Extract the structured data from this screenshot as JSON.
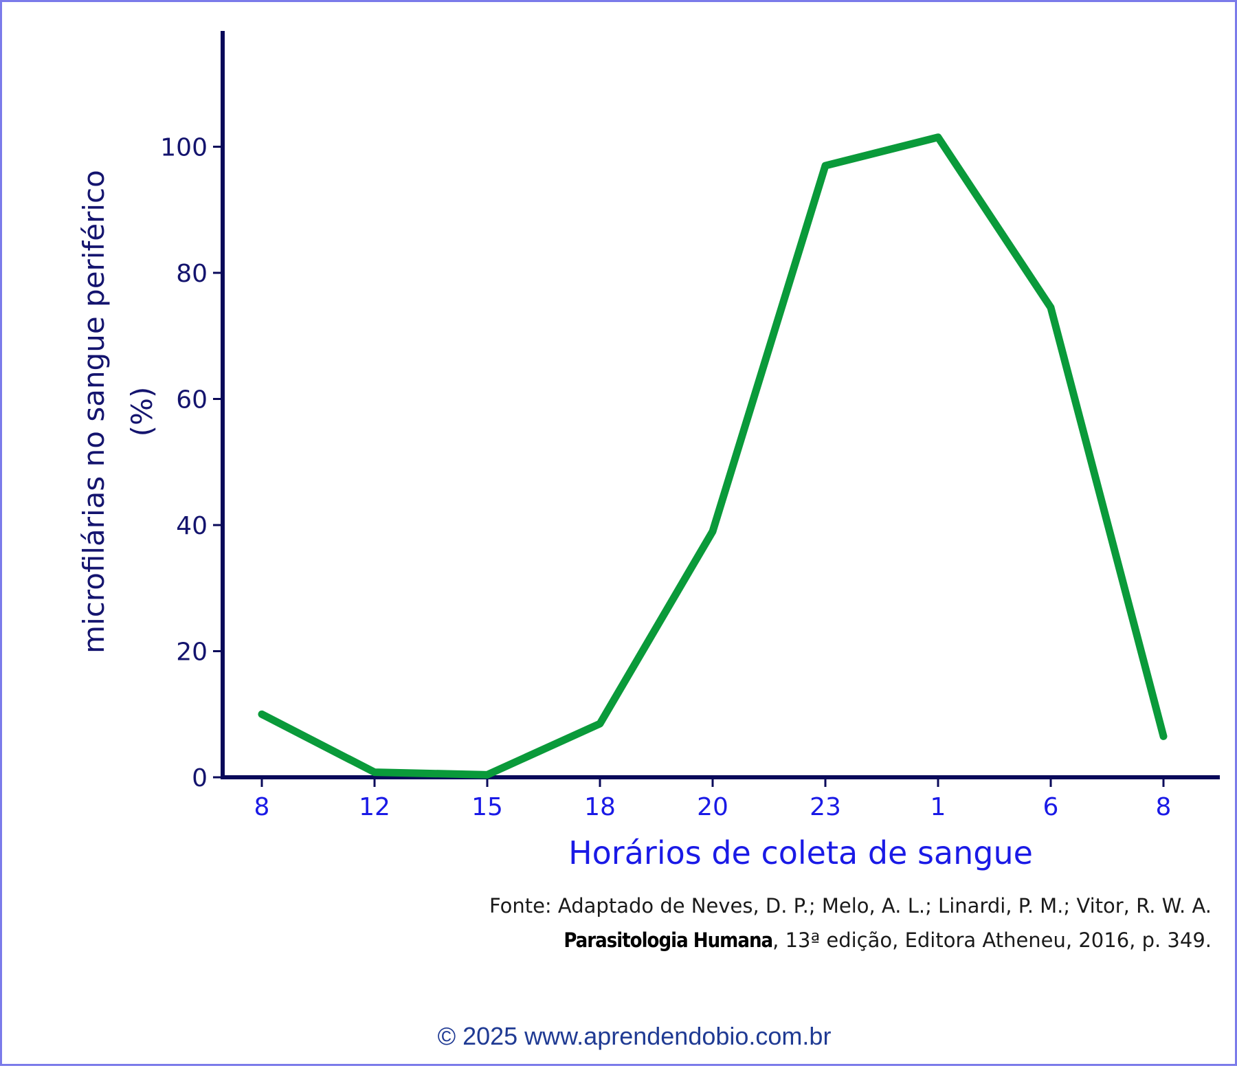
{
  "chart_data": {
    "type": "line",
    "categories": [
      "8",
      "12",
      "15",
      "18",
      "20",
      "23",
      "1",
      "6",
      "8"
    ],
    "series": [
      {
        "name": "microfilárias",
        "values": [
          10,
          0.8,
          0.4,
          8.5,
          39,
          97,
          101.5,
          74.5,
          6.5
        ]
      }
    ],
    "ylabel_line1": "microfilárias no sangue periférico",
    "ylabel_line2": "(%)",
    "xlabel": "Horários de coleta de sangue",
    "ylim": [
      0,
      118
    ],
    "yticks": [
      0,
      20,
      40,
      60,
      80,
      100
    ],
    "grid": false,
    "colors": {
      "line": "#0a9a3a",
      "axis": "#0a0a5a",
      "ytick_text": "#14146e",
      "xtick_text": "#1a1ae6"
    }
  },
  "source": {
    "line1": "Fonte: Adaptado de Neves, D. P.; Melo, A. L.; Linardi, P. M.; Vitor, R. W. A.",
    "book_title": "Parasitologia Humana",
    "line2_rest": ", 13ª edição, Editora Atheneu, 2016, p. 349."
  },
  "copyright": "© 2025 www.aprendendobio.com.br"
}
